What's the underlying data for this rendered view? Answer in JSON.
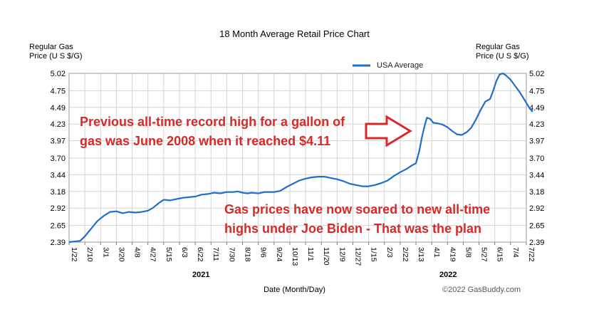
{
  "chart_data": {
    "type": "line",
    "title": "18 Month Average Retail Price Chart",
    "ylabel_left": [
      "Regular Gas",
      "Price (U S $/G)"
    ],
    "ylabel_right": [
      "Regular Gas",
      "Price (U S $/G)"
    ],
    "xlabel": "Date (Month/Day)",
    "year_labels": [
      "2021",
      "2022"
    ],
    "legend": {
      "label": "USA Average",
      "color": "#1f6fc8",
      "placement": "top-center"
    },
    "ylim": [
      2.39,
      5.02
    ],
    "yticks": [
      "5.02",
      "4.75",
      "4.49",
      "4.23",
      "3.97",
      "3.70",
      "3.44",
      "3.18",
      "2.92",
      "2.65",
      "2.39"
    ],
    "xticks": [
      "1/22",
      "2/10",
      "3/1",
      "3/20",
      "4/8",
      "4/27",
      "5/15",
      "6/3",
      "6/22",
      "7/11",
      "7/30",
      "8/18",
      "9/6",
      "9/24",
      "10/13",
      "11/1",
      "11/20",
      "12/9",
      "12/27",
      "1/15",
      "2/3",
      "2/22",
      "3/13",
      "4/1",
      "4/19",
      "5/8",
      "5/27",
      "6/15",
      "7/4",
      "7/22"
    ],
    "grid": true,
    "series": [
      {
        "name": "USA Average",
        "color": "#1f6fc8",
        "points": [
          [
            0,
            2.39
          ],
          [
            0.7,
            2.41
          ],
          [
            1.0,
            2.48
          ],
          [
            1.4,
            2.6
          ],
          [
            1.8,
            2.72
          ],
          [
            2.2,
            2.8
          ],
          [
            2.6,
            2.86
          ],
          [
            3.0,
            2.87
          ],
          [
            3.4,
            2.84
          ],
          [
            3.8,
            2.86
          ],
          [
            4.2,
            2.85
          ],
          [
            4.6,
            2.86
          ],
          [
            5.0,
            2.88
          ],
          [
            5.3,
            2.92
          ],
          [
            5.7,
            3.0
          ],
          [
            6.0,
            3.05
          ],
          [
            6.4,
            3.04
          ],
          [
            6.8,
            3.06
          ],
          [
            7.2,
            3.08
          ],
          [
            7.6,
            3.09
          ],
          [
            8.0,
            3.1
          ],
          [
            8.4,
            3.13
          ],
          [
            8.8,
            3.14
          ],
          [
            9.2,
            3.16
          ],
          [
            9.6,
            3.15
          ],
          [
            10.0,
            3.17
          ],
          [
            10.4,
            3.17
          ],
          [
            10.7,
            3.18
          ],
          [
            11.0,
            3.16
          ],
          [
            11.3,
            3.15
          ],
          [
            11.6,
            3.16
          ],
          [
            12.0,
            3.15
          ],
          [
            12.4,
            3.17
          ],
          [
            12.8,
            3.17
          ],
          [
            13.0,
            3.17
          ],
          [
            13.4,
            3.19
          ],
          [
            13.8,
            3.25
          ],
          [
            14.2,
            3.3
          ],
          [
            14.6,
            3.35
          ],
          [
            15.0,
            3.38
          ],
          [
            15.4,
            3.4
          ],
          [
            15.8,
            3.41
          ],
          [
            16.2,
            3.41
          ],
          [
            16.6,
            3.39
          ],
          [
            17.0,
            3.37
          ],
          [
            17.4,
            3.34
          ],
          [
            17.8,
            3.3
          ],
          [
            18.2,
            3.28
          ],
          [
            18.6,
            3.26
          ],
          [
            19.0,
            3.26
          ],
          [
            19.4,
            3.28
          ],
          [
            19.8,
            3.31
          ],
          [
            20.2,
            3.35
          ],
          [
            20.6,
            3.42
          ],
          [
            21.0,
            3.48
          ],
          [
            21.4,
            3.53
          ],
          [
            21.7,
            3.58
          ],
          [
            22.0,
            3.62
          ],
          [
            22.2,
            3.8
          ],
          [
            22.4,
            4.05
          ],
          [
            22.6,
            4.25
          ],
          [
            22.7,
            4.33
          ],
          [
            22.9,
            4.31
          ],
          [
            23.1,
            4.25
          ],
          [
            23.4,
            4.24
          ],
          [
            23.7,
            4.22
          ],
          [
            24.0,
            4.18
          ],
          [
            24.3,
            4.12
          ],
          [
            24.6,
            4.07
          ],
          [
            24.9,
            4.06
          ],
          [
            25.2,
            4.1
          ],
          [
            25.5,
            4.17
          ],
          [
            25.8,
            4.3
          ],
          [
            26.1,
            4.45
          ],
          [
            26.4,
            4.58
          ],
          [
            26.7,
            4.62
          ],
          [
            26.9,
            4.75
          ],
          [
            27.1,
            4.9
          ],
          [
            27.3,
            5.0
          ],
          [
            27.5,
            5.02
          ],
          [
            27.7,
            4.99
          ],
          [
            28.0,
            4.92
          ],
          [
            28.3,
            4.82
          ],
          [
            28.6,
            4.72
          ],
          [
            28.9,
            4.6
          ],
          [
            29.2,
            4.48
          ],
          [
            29.4,
            4.42
          ]
        ]
      }
    ],
    "annotations": [
      {
        "lines": [
          "Previous all-time record high for a gallon of",
          "gas was June 2008 when it reached $4.11"
        ],
        "color": "#d62a2a"
      },
      {
        "lines": [
          "Gas prices have now soared to new all-time",
          "highs under Joe Biden - That was the plan"
        ],
        "color": "#d62a2a"
      }
    ],
    "credit": "©2022 GasBuddy.com",
    "annotation_arrow_color": "#d62a2a"
  }
}
